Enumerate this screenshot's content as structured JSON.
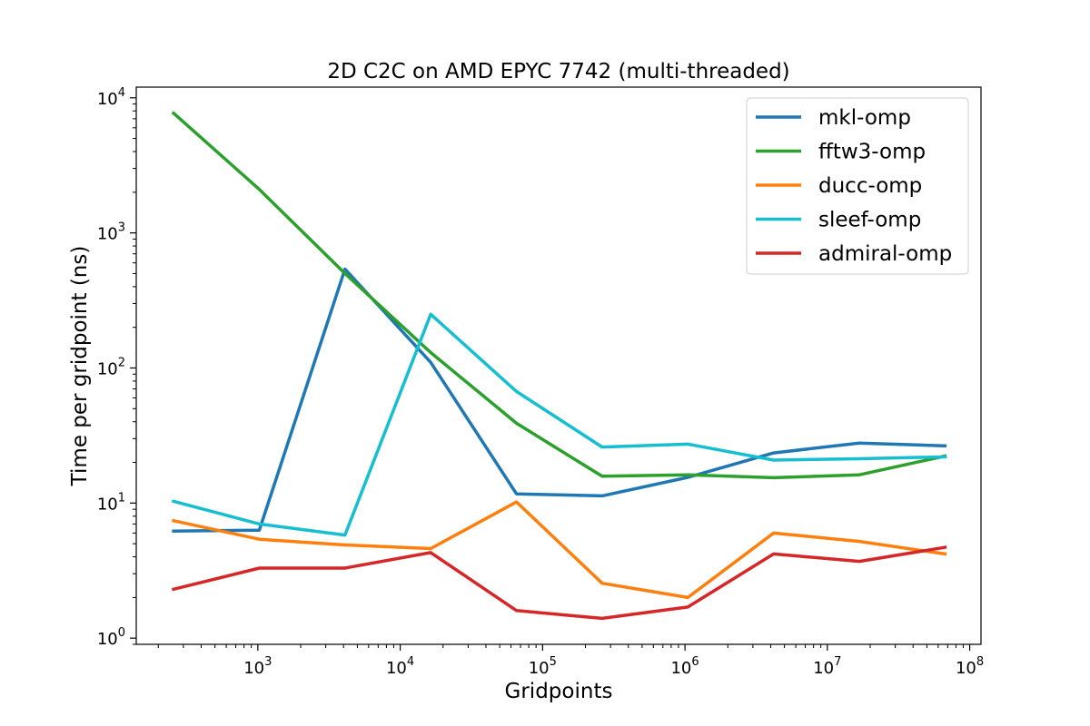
{
  "chart_data": {
    "type": "line",
    "title": "2D C2C on AMD EPYC 7742 (multi-threaded)",
    "xlabel": "Gridpoints",
    "ylabel": "Time per gridpoint (ns)",
    "xscale": "log",
    "yscale": "log",
    "xlim": [
      140,
      120000000
    ],
    "ylim": [
      0.9,
      12000
    ],
    "x_tick_values": [
      1000,
      10000,
      100000,
      1000000,
      10000000,
      100000000
    ],
    "x_tick_labels": [
      {
        "base": "10",
        "exp": "3"
      },
      {
        "base": "10",
        "exp": "4"
      },
      {
        "base": "10",
        "exp": "5"
      },
      {
        "base": "10",
        "exp": "6"
      },
      {
        "base": "10",
        "exp": "7"
      },
      {
        "base": "10",
        "exp": "8"
      }
    ],
    "y_tick_values": [
      1,
      10,
      100,
      1000,
      10000
    ],
    "y_tick_labels": [
      {
        "base": "10",
        "exp": "0"
      },
      {
        "base": "10",
        "exp": "1"
      },
      {
        "base": "10",
        "exp": "2"
      },
      {
        "base": "10",
        "exp": "3"
      },
      {
        "base": "10",
        "exp": "4"
      }
    ],
    "grid": false,
    "legend_position": "top-right",
    "x": [
      256,
      1024,
      4096,
      16384,
      65536,
      262144,
      1048576,
      4194304,
      16777216,
      67108864
    ],
    "series": [
      {
        "name": "mkl-omp",
        "color": "#1f77b4",
        "values": [
          6.2,
          6.3,
          540,
          110,
          11.7,
          11.3,
          15.5,
          23.5,
          27.8,
          26.5
        ]
      },
      {
        "name": "fftw3-omp",
        "color": "#2ca02c",
        "values": [
          7700,
          2100,
          500,
          130,
          39,
          15.8,
          16.2,
          15.4,
          16.2,
          22.3
        ]
      },
      {
        "name": "ducc-omp",
        "color": "#ff7f0e",
        "values": [
          7.4,
          5.4,
          4.9,
          4.6,
          10.2,
          2.55,
          2.0,
          6.0,
          5.2,
          4.2
        ]
      },
      {
        "name": "sleef-omp",
        "color": "#17becf",
        "values": [
          10.3,
          7.0,
          5.8,
          250,
          67,
          26,
          27.3,
          20.8,
          21.3,
          22
        ]
      },
      {
        "name": "admiral-omp",
        "color": "#d62728",
        "values": [
          2.3,
          3.3,
          3.3,
          4.3,
          1.6,
          1.4,
          1.7,
          4.2,
          3.7,
          4.7
        ]
      }
    ]
  }
}
